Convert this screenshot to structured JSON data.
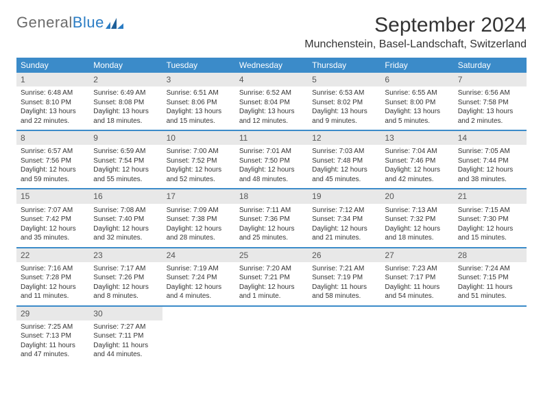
{
  "logo": {
    "text1": "General",
    "text2": "Blue"
  },
  "title": "September 2024",
  "location": "Munchenstein, Basel-Landschaft, Switzerland",
  "colors": {
    "header_bg": "#3b8bc9",
    "header_text": "#ffffff",
    "daynum_bg": "#e8e8e8",
    "week_border": "#3b8bc9",
    "logo_gray": "#6b6b6b",
    "logo_blue": "#2a7cc4",
    "body_text": "#333333"
  },
  "weekdays": [
    "Sunday",
    "Monday",
    "Tuesday",
    "Wednesday",
    "Thursday",
    "Friday",
    "Saturday"
  ],
  "weeks": [
    [
      {
        "n": "1",
        "sunrise": "6:48 AM",
        "sunset": "8:10 PM",
        "daylight": "13 hours and 22 minutes."
      },
      {
        "n": "2",
        "sunrise": "6:49 AM",
        "sunset": "8:08 PM",
        "daylight": "13 hours and 18 minutes."
      },
      {
        "n": "3",
        "sunrise": "6:51 AM",
        "sunset": "8:06 PM",
        "daylight": "13 hours and 15 minutes."
      },
      {
        "n": "4",
        "sunrise": "6:52 AM",
        "sunset": "8:04 PM",
        "daylight": "13 hours and 12 minutes."
      },
      {
        "n": "5",
        "sunrise": "6:53 AM",
        "sunset": "8:02 PM",
        "daylight": "13 hours and 9 minutes."
      },
      {
        "n": "6",
        "sunrise": "6:55 AM",
        "sunset": "8:00 PM",
        "daylight": "13 hours and 5 minutes."
      },
      {
        "n": "7",
        "sunrise": "6:56 AM",
        "sunset": "7:58 PM",
        "daylight": "13 hours and 2 minutes."
      }
    ],
    [
      {
        "n": "8",
        "sunrise": "6:57 AM",
        "sunset": "7:56 PM",
        "daylight": "12 hours and 59 minutes."
      },
      {
        "n": "9",
        "sunrise": "6:59 AM",
        "sunset": "7:54 PM",
        "daylight": "12 hours and 55 minutes."
      },
      {
        "n": "10",
        "sunrise": "7:00 AM",
        "sunset": "7:52 PM",
        "daylight": "12 hours and 52 minutes."
      },
      {
        "n": "11",
        "sunrise": "7:01 AM",
        "sunset": "7:50 PM",
        "daylight": "12 hours and 48 minutes."
      },
      {
        "n": "12",
        "sunrise": "7:03 AM",
        "sunset": "7:48 PM",
        "daylight": "12 hours and 45 minutes."
      },
      {
        "n": "13",
        "sunrise": "7:04 AM",
        "sunset": "7:46 PM",
        "daylight": "12 hours and 42 minutes."
      },
      {
        "n": "14",
        "sunrise": "7:05 AM",
        "sunset": "7:44 PM",
        "daylight": "12 hours and 38 minutes."
      }
    ],
    [
      {
        "n": "15",
        "sunrise": "7:07 AM",
        "sunset": "7:42 PM",
        "daylight": "12 hours and 35 minutes."
      },
      {
        "n": "16",
        "sunrise": "7:08 AM",
        "sunset": "7:40 PM",
        "daylight": "12 hours and 32 minutes."
      },
      {
        "n": "17",
        "sunrise": "7:09 AM",
        "sunset": "7:38 PM",
        "daylight": "12 hours and 28 minutes."
      },
      {
        "n": "18",
        "sunrise": "7:11 AM",
        "sunset": "7:36 PM",
        "daylight": "12 hours and 25 minutes."
      },
      {
        "n": "19",
        "sunrise": "7:12 AM",
        "sunset": "7:34 PM",
        "daylight": "12 hours and 21 minutes."
      },
      {
        "n": "20",
        "sunrise": "7:13 AM",
        "sunset": "7:32 PM",
        "daylight": "12 hours and 18 minutes."
      },
      {
        "n": "21",
        "sunrise": "7:15 AM",
        "sunset": "7:30 PM",
        "daylight": "12 hours and 15 minutes."
      }
    ],
    [
      {
        "n": "22",
        "sunrise": "7:16 AM",
        "sunset": "7:28 PM",
        "daylight": "12 hours and 11 minutes."
      },
      {
        "n": "23",
        "sunrise": "7:17 AM",
        "sunset": "7:26 PM",
        "daylight": "12 hours and 8 minutes."
      },
      {
        "n": "24",
        "sunrise": "7:19 AM",
        "sunset": "7:24 PM",
        "daylight": "12 hours and 4 minutes."
      },
      {
        "n": "25",
        "sunrise": "7:20 AM",
        "sunset": "7:21 PM",
        "daylight": "12 hours and 1 minute."
      },
      {
        "n": "26",
        "sunrise": "7:21 AM",
        "sunset": "7:19 PM",
        "daylight": "11 hours and 58 minutes."
      },
      {
        "n": "27",
        "sunrise": "7:23 AM",
        "sunset": "7:17 PM",
        "daylight": "11 hours and 54 minutes."
      },
      {
        "n": "28",
        "sunrise": "7:24 AM",
        "sunset": "7:15 PM",
        "daylight": "11 hours and 51 minutes."
      }
    ],
    [
      {
        "n": "29",
        "sunrise": "7:25 AM",
        "sunset": "7:13 PM",
        "daylight": "11 hours and 47 minutes."
      },
      {
        "n": "30",
        "sunrise": "7:27 AM",
        "sunset": "7:11 PM",
        "daylight": "11 hours and 44 minutes."
      },
      null,
      null,
      null,
      null,
      null
    ]
  ],
  "labels": {
    "sunrise": "Sunrise:",
    "sunset": "Sunset:",
    "daylight": "Daylight:"
  }
}
